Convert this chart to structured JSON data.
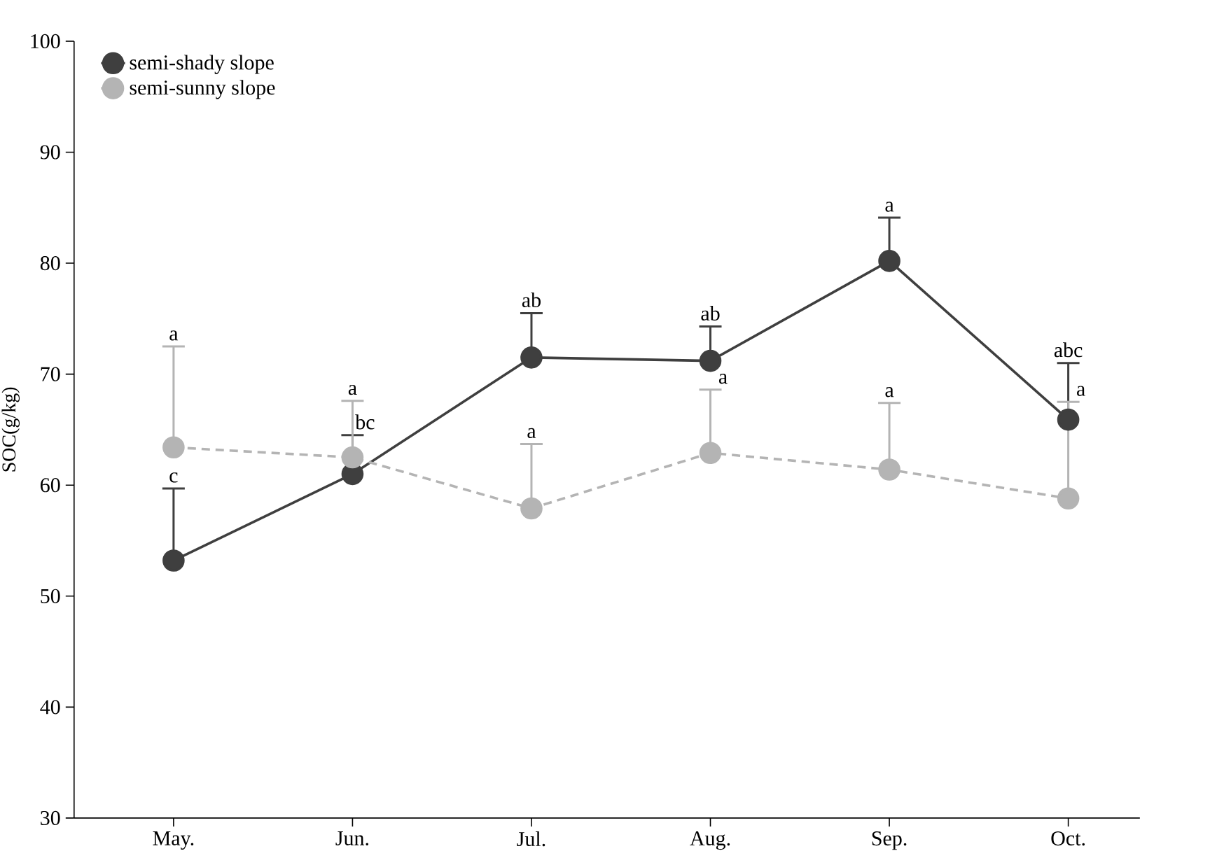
{
  "chart_data": {
    "type": "line",
    "ylabel": "SOC(g/kg)",
    "categories": [
      "May.",
      "Jun.",
      "Jul.",
      "Aug.",
      "Sep.",
      "Oct."
    ],
    "ylim": [
      30,
      100
    ],
    "yticks": [
      30,
      40,
      50,
      60,
      70,
      80,
      90,
      100
    ],
    "series": [
      {
        "name": "semi-shady slope",
        "color": "#3f3f3f",
        "line_style": "solid",
        "values": [
          53.2,
          61.0,
          71.5,
          71.2,
          80.2,
          65.9
        ],
        "errors": [
          [
            53.2,
            59.7
          ],
          [
            61.0,
            64.5
          ],
          [
            71.5,
            75.5
          ],
          [
            71.2,
            74.3
          ],
          [
            80.2,
            84.1
          ],
          [
            65.9,
            71.0
          ]
        ]
      },
      {
        "name": "semi-sunny slope",
        "color": "#b4b4b4",
        "line_style": "dashed",
        "values": [
          63.4,
          62.5,
          57.9,
          62.9,
          61.4,
          58.8
        ],
        "errors": [
          [
            63.4,
            72.5
          ],
          [
            62.5,
            67.6
          ],
          [
            57.9,
            63.7
          ],
          [
            62.9,
            68.6
          ],
          [
            61.4,
            67.4
          ],
          [
            58.8,
            67.5
          ]
        ]
      }
    ],
    "marker": "circle",
    "legend": "top left",
    "grid": false,
    "annotations": [
      {
        "text": "c",
        "x": "May.",
        "y": 59.7
      },
      {
        "text": "bc",
        "x": "Jun.",
        "y": 64.5
      },
      {
        "text": "ab",
        "x": "Jul.",
        "y": 75.5
      },
      {
        "text": "ab",
        "x": "Aug.",
        "y": 74.3
      },
      {
        "text": "a",
        "x": "Sep.",
        "y": 84.1
      },
      {
        "text": "abc",
        "x": "Oct.",
        "y": 71.0
      },
      {
        "text": "a",
        "x": "May.",
        "y": 72.5
      },
      {
        "text": "a",
        "x": "Jun.",
        "y": 67.6
      },
      {
        "text": "a",
        "x": "Jul.",
        "y": 63.7
      },
      {
        "text": "a",
        "x": "Aug.",
        "y": 68.6
      },
      {
        "text": "a",
        "x": "Sep.",
        "y": 67.4
      },
      {
        "text": "a",
        "x": "Oct.",
        "y": 67.5
      }
    ]
  }
}
